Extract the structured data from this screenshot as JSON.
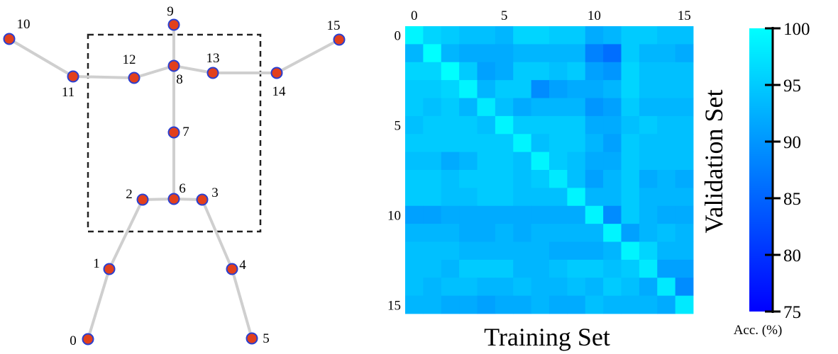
{
  "skeleton": {
    "joints": [
      {
        "id": "0",
        "label": "0"
      },
      {
        "id": "1",
        "label": "1"
      },
      {
        "id": "2",
        "label": "2"
      },
      {
        "id": "3",
        "label": "3"
      },
      {
        "id": "4",
        "label": "4"
      },
      {
        "id": "5",
        "label": "5"
      },
      {
        "id": "6",
        "label": "6"
      },
      {
        "id": "7",
        "label": "7"
      },
      {
        "id": "8",
        "label": "8"
      },
      {
        "id": "9",
        "label": "9"
      },
      {
        "id": "10",
        "label": "10"
      },
      {
        "id": "11",
        "label": "11"
      },
      {
        "id": "12",
        "label": "12"
      },
      {
        "id": "13",
        "label": "13"
      },
      {
        "id": "14",
        "label": "14"
      },
      {
        "id": "15",
        "label": "15"
      }
    ],
    "bones": [
      [
        0,
        1
      ],
      [
        1,
        2
      ],
      [
        2,
        6
      ],
      [
        6,
        3
      ],
      [
        3,
        4
      ],
      [
        4,
        5
      ],
      [
        6,
        7
      ],
      [
        7,
        8
      ],
      [
        8,
        9
      ],
      [
        8,
        12
      ],
      [
        12,
        11
      ],
      [
        11,
        10
      ],
      [
        8,
        13
      ],
      [
        13,
        14
      ],
      [
        14,
        15
      ]
    ],
    "joint_color": "#e2401c",
    "joint_outline": "#2a3fd0",
    "bone_color": "#cfcfcf"
  },
  "chart_data": {
    "type": "heatmap",
    "xlabel": "Training Set",
    "ylabel": "Validation Set",
    "x_ticks": [
      0,
      5,
      10,
      15
    ],
    "y_ticks": [
      0,
      5,
      10,
      15
    ],
    "colorbar": {
      "label": "Acc. (%)",
      "ticks": [
        75,
        80,
        85,
        90,
        95,
        100
      ],
      "range": [
        75,
        100
      ]
    },
    "values": [
      [
        99,
        96,
        95,
        94,
        94,
        93,
        96,
        96,
        95,
        95,
        92,
        93,
        95,
        95,
        94,
        94
      ],
      [
        93,
        100,
        93,
        92,
        92,
        92,
        93,
        93,
        93,
        93,
        88,
        86,
        95,
        93,
        93,
        92
      ],
      [
        96,
        96,
        100,
        95,
        91,
        92,
        95,
        95,
        94,
        95,
        91,
        90,
        96,
        94,
        94,
        94
      ],
      [
        95,
        95,
        96,
        99,
        93,
        95,
        95,
        89,
        91,
        92,
        92,
        93,
        96,
        94,
        94,
        94
      ],
      [
        95,
        94,
        95,
        93,
        98,
        94,
        92,
        93,
        93,
        93,
        90,
        91,
        95,
        93,
        93,
        93
      ],
      [
        94,
        95,
        95,
        95,
        94,
        99,
        95,
        95,
        95,
        95,
        92,
        92,
        94,
        95,
        94,
        94
      ],
      [
        95,
        95,
        95,
        95,
        95,
        95,
        99,
        94,
        95,
        95,
        93,
        91,
        95,
        94,
        94,
        94
      ],
      [
        94,
        94,
        92,
        93,
        95,
        95,
        94,
        99,
        95,
        94,
        92,
        92,
        95,
        94,
        94,
        94
      ],
      [
        95,
        95,
        94,
        95,
        95,
        95,
        94,
        95,
        98,
        94,
        91,
        93,
        95,
        92,
        93,
        92
      ],
      [
        95,
        95,
        94,
        94,
        95,
        95,
        94,
        94,
        94,
        99,
        93,
        93,
        95,
        93,
        93,
        93
      ],
      [
        91,
        91,
        92,
        92,
        92,
        92,
        92,
        92,
        92,
        92,
        99,
        89,
        95,
        93,
        92,
        92
      ],
      [
        93,
        93,
        93,
        92,
        92,
        93,
        92,
        93,
        93,
        93,
        93,
        99,
        91,
        93,
        94,
        93
      ],
      [
        94,
        94,
        94,
        93,
        93,
        93,
        93,
        93,
        92,
        92,
        92,
        93,
        99,
        96,
        93,
        93
      ],
      [
        94,
        94,
        93,
        95,
        95,
        95,
        93,
        93,
        94,
        95,
        95,
        94,
        95,
        98,
        91,
        91
      ],
      [
        94,
        93,
        94,
        94,
        93,
        93,
        94,
        93,
        93,
        94,
        93,
        95,
        94,
        92,
        98,
        89
      ],
      [
        93,
        93,
        92,
        92,
        91,
        92,
        92,
        93,
        92,
        92,
        94,
        93,
        93,
        93,
        92,
        98
      ]
    ]
  }
}
